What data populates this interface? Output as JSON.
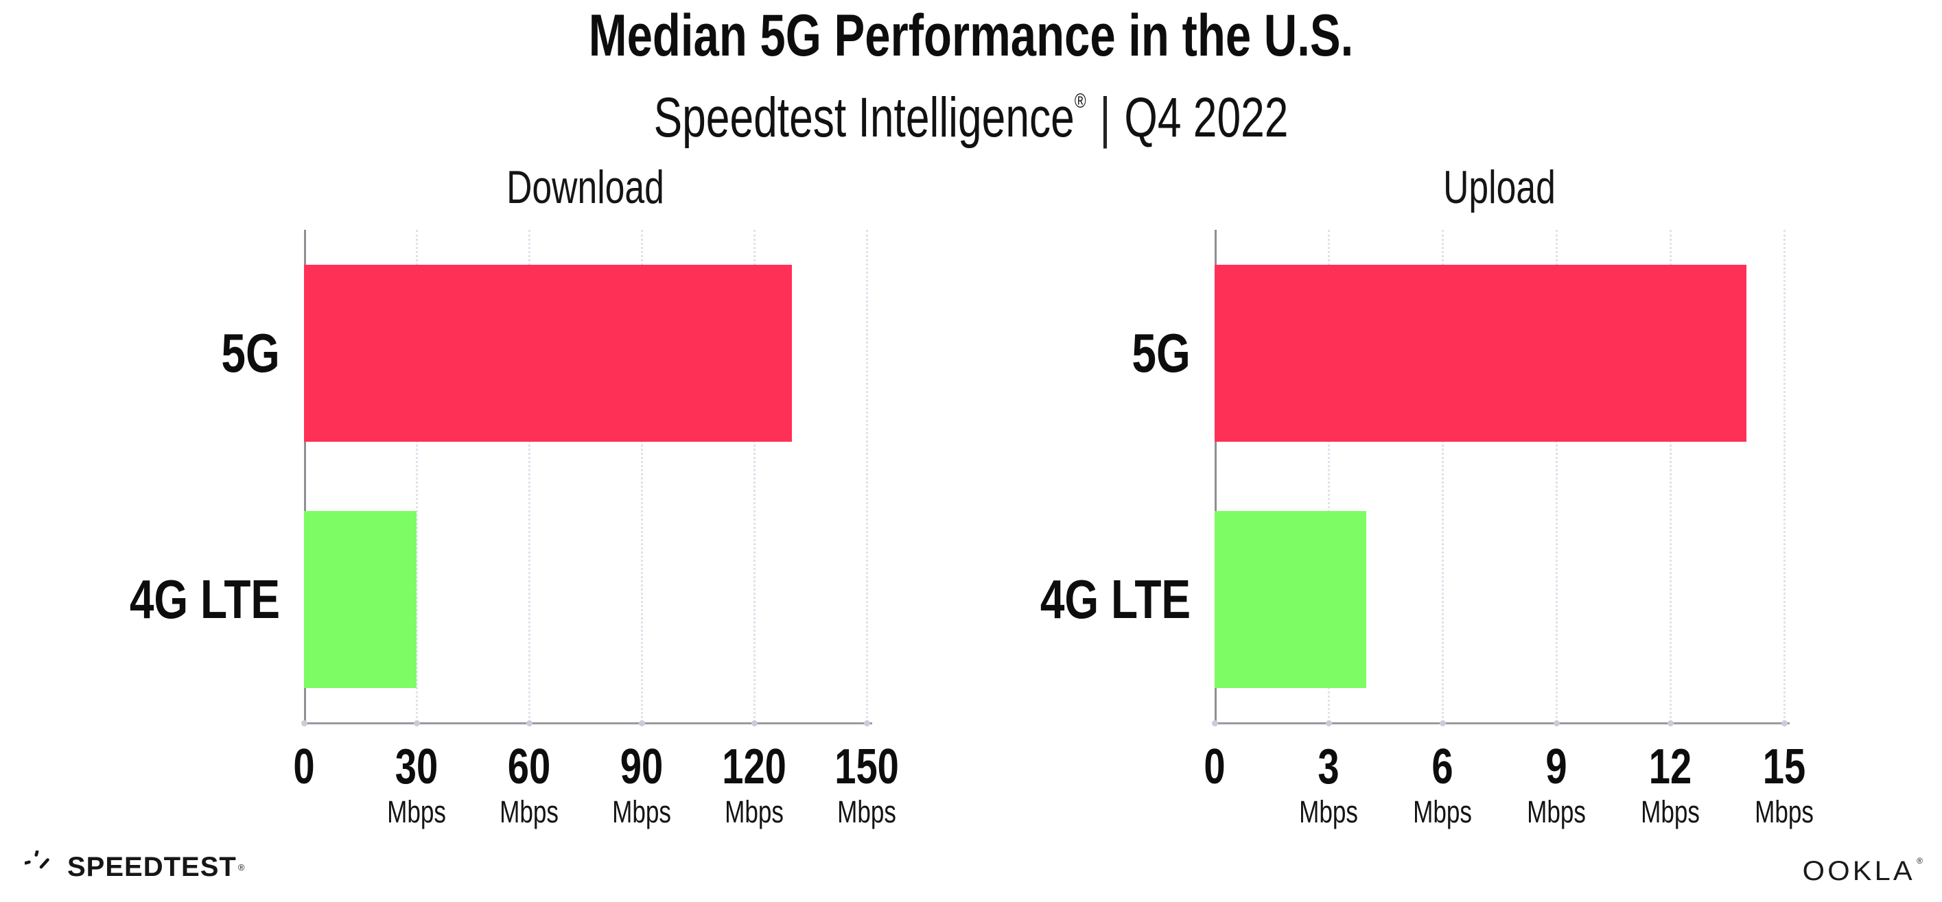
{
  "header": {
    "title": "Median 5G Performance in the U.S.",
    "subtitle_brand": "Speedtest Intelligence",
    "subtitle_reg": "®",
    "subtitle_sep": "|",
    "subtitle_period": "Q4 2022"
  },
  "chart_data": [
    {
      "type": "bar",
      "orientation": "horizontal",
      "title": "Download",
      "categories": [
        "5G",
        "4G LTE"
      ],
      "values": [
        130,
        30
      ],
      "unit": "Mbps",
      "xlim": [
        0,
        150
      ],
      "xticks": [
        0,
        30,
        60,
        90,
        120,
        150
      ],
      "bar_colors": [
        "#FF3056",
        "#7DFC64"
      ],
      "grid": "dotted-vertical",
      "legend": "none"
    },
    {
      "type": "bar",
      "orientation": "horizontal",
      "title": "Upload",
      "categories": [
        "5G",
        "4G LTE"
      ],
      "values": [
        14,
        4
      ],
      "unit": "Mbps",
      "xlim": [
        0,
        15
      ],
      "xticks": [
        0,
        3,
        6,
        9,
        12,
        15
      ],
      "bar_colors": [
        "#FF3056",
        "#7DFC64"
      ],
      "grid": "dotted-vertical",
      "legend": "none"
    }
  ],
  "footer": {
    "speedtest_label": "SPEEDTEST",
    "speedtest_mark": "®",
    "ookla_label": "OOKLA",
    "ookla_mark": "®"
  },
  "colors": {
    "bar_5g": "#FF3056",
    "bar_4g_lte": "#7DFC64",
    "text": "#0d0d0d",
    "y_axis": "#8f8f96",
    "x_axis": "#9a9aa0",
    "gridline": "#dfe1ec"
  }
}
